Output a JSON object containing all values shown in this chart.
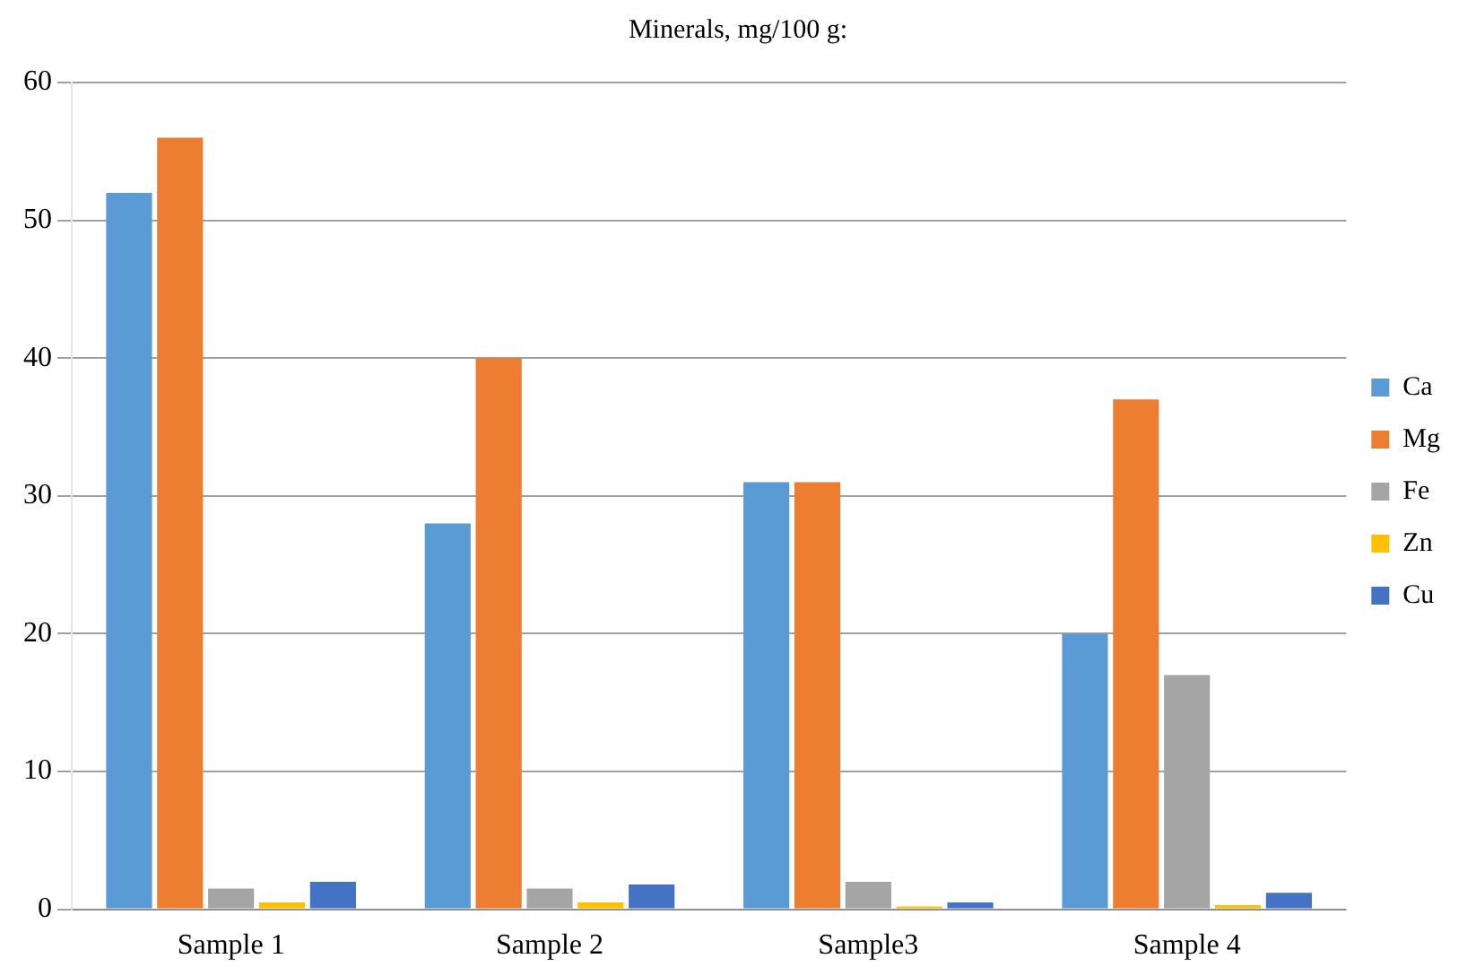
{
  "chart_data": {
    "type": "bar",
    "title": "Minerals, mg/100 g:",
    "categories": [
      "Sample 1",
      "Sample 2",
      "Sample3",
      "Sample 4"
    ],
    "series": [
      {
        "name": "Ca",
        "color": "#5b9bd5",
        "values": [
          52,
          28,
          31,
          20
        ]
      },
      {
        "name": "Mg",
        "color": "#ed7d31",
        "values": [
          56,
          40,
          31,
          37
        ]
      },
      {
        "name": "Fe",
        "color": "#a5a5a5",
        "values": [
          1.5,
          1.5,
          2,
          17
        ]
      },
      {
        "name": "Zn",
        "color": "#ffc000",
        "values": [
          0.5,
          0.5,
          0.2,
          0.3
        ]
      },
      {
        "name": "Cu",
        "color": "#4472c4",
        "values": [
          2,
          1.8,
          0.5,
          1.2
        ]
      }
    ],
    "ylim": [
      0,
      60
    ],
    "yticks": [
      0,
      10,
      20,
      30,
      40,
      50,
      60
    ],
    "grid": "y",
    "legend": "right"
  }
}
